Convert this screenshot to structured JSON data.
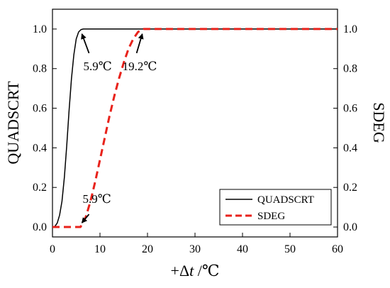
{
  "chart_data": {
    "type": "line",
    "x_axis": {
      "label_main": "+Δ",
      "label_var": "t",
      "label_unit": " /℃",
      "ticks": [
        0,
        10,
        20,
        30,
        40,
        50,
        60
      ],
      "range": [
        0,
        60
      ]
    },
    "y_left": {
      "label": "QUADSCRT",
      "ticks": [
        "0.0",
        "0.2",
        "0.4",
        "0.6",
        "0.8",
        "1.0"
      ],
      "range": [
        -0.05,
        1.1
      ]
    },
    "y_right": {
      "label": "SDEG",
      "ticks": [
        "0.0",
        "0.2",
        "0.4",
        "0.6",
        "0.8",
        "1.0"
      ],
      "range": [
        -0.05,
        1.1
      ]
    },
    "series": [
      {
        "name": "QUADSCRT",
        "color": "#000000",
        "style": "solid",
        "x": [
          0,
          0.5,
          1,
          1.5,
          2,
          2.5,
          3,
          3.5,
          4,
          4.5,
          5,
          5.5,
          6,
          6.5,
          7,
          8,
          10,
          20,
          30,
          40,
          50,
          60
        ],
        "y": [
          0,
          0.003,
          0.02,
          0.06,
          0.13,
          0.25,
          0.41,
          0.59,
          0.75,
          0.87,
          0.95,
          0.985,
          0.997,
          1.0,
          1.0,
          1.0,
          1.0,
          1.0,
          1.0,
          1.0,
          1.0,
          1.0
        ]
      },
      {
        "name": "SDEG",
        "color": "#e8221b",
        "style": "dashed",
        "x": [
          0,
          2,
          4,
          5.9,
          7,
          8,
          9,
          10,
          11,
          12,
          13,
          14,
          15,
          16,
          17,
          18,
          19,
          19.2,
          20,
          30,
          40,
          50,
          60
        ],
        "y": [
          0,
          0,
          0,
          0,
          0.05,
          0.13,
          0.23,
          0.34,
          0.45,
          0.56,
          0.66,
          0.75,
          0.83,
          0.9,
          0.95,
          0.985,
          0.998,
          1.0,
          1.0,
          1.0,
          1.0,
          1.0,
          1.0
        ]
      }
    ],
    "annotations": [
      {
        "text": "5.9℃",
        "point": [
          5.9,
          1.0
        ]
      },
      {
        "text": "19.2℃",
        "point": [
          19.2,
          1.0
        ]
      },
      {
        "text": "5.9℃",
        "point": [
          5.9,
          0.0
        ]
      }
    ],
    "legend": {
      "position": "bottom-right",
      "entries": [
        "QUADSCRT",
        "SDEG"
      ]
    },
    "grid": false
  }
}
